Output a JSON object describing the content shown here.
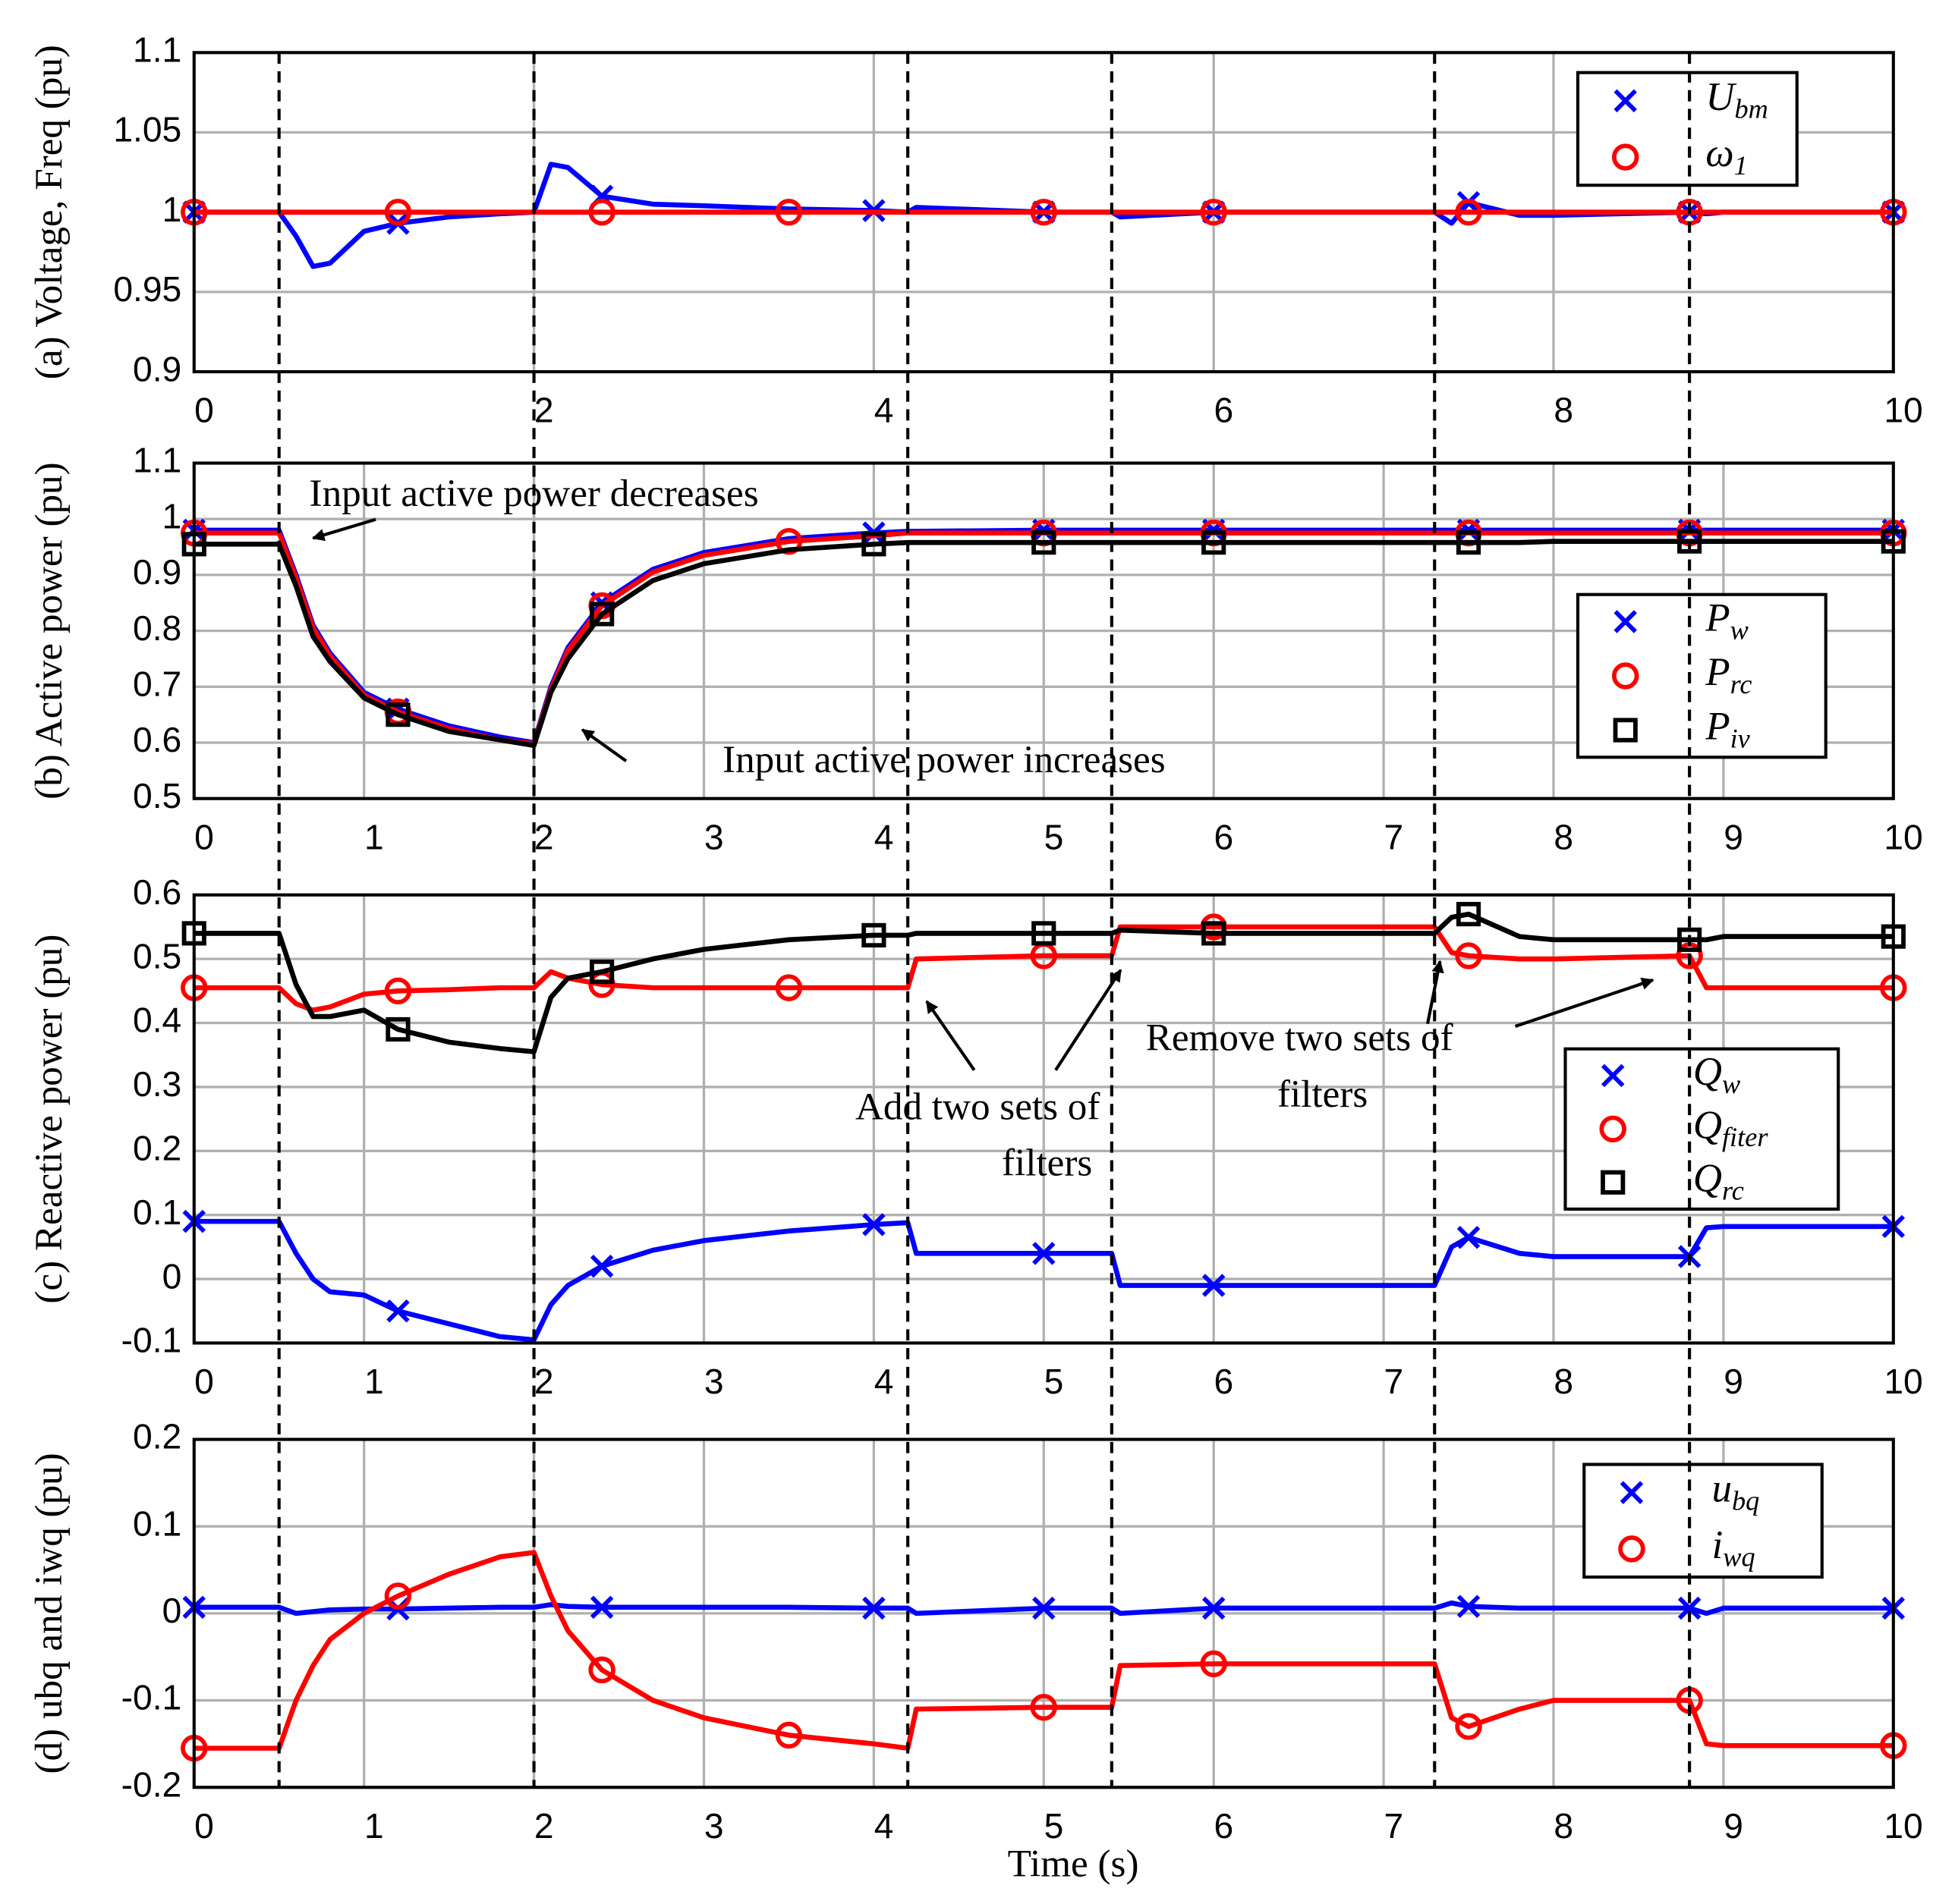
{
  "event_times": [
    0.5,
    2,
    4.2,
    5.4,
    7.3,
    8.8
  ],
  "xlabel": "Time (s)",
  "chart_data": [
    {
      "type": "line",
      "ylabel": "(a) Voltage, Freq (pu)",
      "x": [
        0,
        0.5,
        0.6,
        0.7,
        0.8,
        1.0,
        1.2,
        1.5,
        1.8,
        2.0,
        2.1,
        2.2,
        2.4,
        2.7,
        3.0,
        3.5,
        4.0,
        4.2,
        4.25,
        5.0,
        5.4,
        5.45,
        6,
        7,
        7.3,
        7.4,
        7.5,
        7.8,
        8,
        8.8,
        8.9,
        9,
        10
      ],
      "xlim": [
        0,
        10
      ],
      "xticks": [
        0,
        2,
        4,
        6,
        8,
        10
      ],
      "ylim": [
        0.9,
        1.1
      ],
      "yticks": [
        0.9,
        0.95,
        1,
        1.05,
        1.1
      ],
      "grid": true,
      "legend": "upper right",
      "series": [
        {
          "name": "Ubm",
          "color": "#0000ff",
          "marker": "x",
          "values": [
            1,
            1,
            0.985,
            0.966,
            0.968,
            0.988,
            0.993,
            0.997,
            0.999,
            1.0,
            1.03,
            1.028,
            1.01,
            1.005,
            1.004,
            1.002,
            1.001,
            1.0,
            1.003,
            1.0,
            1.0,
            0.997,
            1.0,
            1.0,
            1.0,
            0.993,
            1.006,
            0.998,
            0.998,
            1.0,
            0.999,
            1.0,
            1.0
          ]
        },
        {
          "name": "ω1",
          "color": "#ff0000",
          "marker": "o",
          "values": [
            1,
            1,
            1,
            1,
            1,
            1,
            1,
            1,
            1,
            1,
            1,
            1,
            1,
            1,
            1,
            1,
            1,
            1,
            1,
            1,
            1,
            1,
            1,
            1,
            1,
            1,
            1,
            1,
            1,
            1,
            1,
            1,
            1
          ]
        }
      ]
    },
    {
      "type": "line",
      "ylabel": "(b) Active power (pu)",
      "x": [
        0,
        0.5,
        0.6,
        0.7,
        0.8,
        1.0,
        1.2,
        1.5,
        1.8,
        2.0,
        2.1,
        2.2,
        2.4,
        2.7,
        3.0,
        3.5,
        4.0,
        4.2,
        4.25,
        5.0,
        5.4,
        5.45,
        6,
        7,
        7.3,
        7.4,
        7.5,
        7.8,
        8,
        8.8,
        8.9,
        9,
        10
      ],
      "xlim": [
        0,
        10
      ],
      "xticks": [
        0,
        1,
        2,
        3,
        4,
        5,
        6,
        7,
        8,
        9,
        10
      ],
      "ylim": [
        0.5,
        1.1
      ],
      "yticks": [
        0.5,
        0.6,
        0.7,
        0.8,
        0.9,
        1,
        1.1
      ],
      "grid": true,
      "legend": "right",
      "annotations": [
        "Input active power decreases",
        "Input active power increases"
      ],
      "series": [
        {
          "name": "Pw",
          "color": "#0000ff",
          "marker": "x",
          "values": [
            0.98,
            0.98,
            0.9,
            0.81,
            0.76,
            0.69,
            0.66,
            0.63,
            0.61,
            0.6,
            0.7,
            0.77,
            0.85,
            0.91,
            0.94,
            0.965,
            0.975,
            0.978,
            0.978,
            0.98,
            0.98,
            0.98,
            0.98,
            0.98,
            0.98,
            0.98,
            0.98,
            0.98,
            0.98,
            0.98,
            0.98,
            0.98,
            0.98
          ]
        },
        {
          "name": "Prc",
          "color": "#ff0000",
          "marker": "o",
          "values": [
            0.975,
            0.975,
            0.895,
            0.805,
            0.755,
            0.685,
            0.655,
            0.625,
            0.605,
            0.598,
            0.695,
            0.765,
            0.845,
            0.905,
            0.935,
            0.96,
            0.97,
            0.975,
            0.975,
            0.975,
            0.975,
            0.975,
            0.975,
            0.975,
            0.975,
            0.975,
            0.975,
            0.975,
            0.975,
            0.975,
            0.975,
            0.975,
            0.975
          ]
        },
        {
          "name": "Piv",
          "color": "#000000",
          "marker": "s",
          "values": [
            0.955,
            0.955,
            0.88,
            0.79,
            0.745,
            0.68,
            0.65,
            0.62,
            0.605,
            0.595,
            0.69,
            0.75,
            0.83,
            0.89,
            0.92,
            0.945,
            0.955,
            0.958,
            0.958,
            0.958,
            0.958,
            0.958,
            0.958,
            0.958,
            0.958,
            0.958,
            0.958,
            0.958,
            0.96,
            0.96,
            0.96,
            0.96,
            0.96
          ]
        }
      ]
    },
    {
      "type": "line",
      "ylabel": "(c) Reactive power (pu)",
      "x": [
        0,
        0.5,
        0.6,
        0.7,
        0.8,
        1.0,
        1.2,
        1.5,
        1.8,
        2.0,
        2.1,
        2.2,
        2.4,
        2.7,
        3.0,
        3.5,
        4.0,
        4.2,
        4.25,
        5.0,
        5.4,
        5.45,
        6,
        7,
        7.3,
        7.4,
        7.5,
        7.8,
        8,
        8.8,
        8.9,
        9,
        10
      ],
      "xlim": [
        0,
        10
      ],
      "xticks": [
        0,
        1,
        2,
        3,
        4,
        5,
        6,
        7,
        8,
        9,
        10
      ],
      "ylim": [
        -0.1,
        0.6
      ],
      "yticks": [
        -0.1,
        0,
        0.1,
        0.2,
        0.3,
        0.4,
        0.5,
        0.6
      ],
      "grid": true,
      "legend": "right",
      "annotations": [
        "Add two sets of",
        "filters",
        "Remove two sets of",
        "filters"
      ],
      "series": [
        {
          "name": "Qw",
          "color": "#0000ff",
          "marker": "x",
          "values": [
            0.09,
            0.09,
            0.04,
            0.0,
            -0.02,
            -0.025,
            -0.05,
            -0.07,
            -0.09,
            -0.095,
            -0.04,
            -0.01,
            0.02,
            0.045,
            0.06,
            0.075,
            0.085,
            0.088,
            0.04,
            0.04,
            0.04,
            -0.01,
            -0.01,
            -0.01,
            -0.01,
            0.05,
            0.065,
            0.04,
            0.035,
            0.035,
            0.08,
            0.082,
            0.082
          ]
        },
        {
          "name": "Qfiter",
          "color": "#ff0000",
          "marker": "o",
          "values": [
            0.455,
            0.455,
            0.43,
            0.42,
            0.425,
            0.445,
            0.45,
            0.452,
            0.455,
            0.455,
            0.48,
            0.47,
            0.46,
            0.455,
            0.455,
            0.455,
            0.455,
            0.455,
            0.5,
            0.505,
            0.505,
            0.55,
            0.55,
            0.55,
            0.55,
            0.51,
            0.505,
            0.5,
            0.5,
            0.505,
            0.455,
            0.455,
            0.455
          ]
        },
        {
          "name": "Qrc",
          "color": "#000000",
          "marker": "s",
          "values": [
            0.54,
            0.54,
            0.46,
            0.41,
            0.41,
            0.42,
            0.39,
            0.37,
            0.36,
            0.355,
            0.44,
            0.47,
            0.48,
            0.5,
            0.515,
            0.53,
            0.537,
            0.537,
            0.54,
            0.54,
            0.54,
            0.545,
            0.54,
            0.54,
            0.54,
            0.565,
            0.57,
            0.535,
            0.53,
            0.53,
            0.53,
            0.535,
            0.535
          ]
        }
      ]
    },
    {
      "type": "line",
      "ylabel": "(d) ubq and iwq (pu)",
      "x": [
        0,
        0.5,
        0.6,
        0.7,
        0.8,
        1.0,
        1.2,
        1.5,
        1.8,
        2.0,
        2.1,
        2.2,
        2.4,
        2.7,
        3.0,
        3.5,
        4.0,
        4.2,
        4.25,
        5.0,
        5.4,
        5.45,
        6,
        7,
        7.3,
        7.4,
        7.5,
        7.8,
        8,
        8.8,
        8.9,
        9,
        10
      ],
      "xlim": [
        0,
        10
      ],
      "xticks": [
        0,
        1,
        2,
        3,
        4,
        5,
        6,
        7,
        8,
        9,
        10
      ],
      "ylim": [
        -0.2,
        0.2
      ],
      "yticks": [
        -0.2,
        -0.1,
        0,
        0.1,
        0.2
      ],
      "grid": true,
      "legend": "upper right",
      "series": [
        {
          "name": "ubq",
          "color": "#0000ff",
          "marker": "x",
          "values": [
            0.007,
            0.007,
            0.0,
            0.002,
            0.004,
            0.005,
            0.005,
            0.006,
            0.007,
            0.007,
            0.01,
            0.008,
            0.007,
            0.007,
            0.007,
            0.007,
            0.006,
            0.006,
            0.0,
            0.006,
            0.006,
            0.0,
            0.006,
            0.006,
            0.006,
            0.012,
            0.008,
            0.006,
            0.006,
            0.006,
            0.0,
            0.006,
            0.006
          ]
        },
        {
          "name": "iwq",
          "color": "#ff0000",
          "marker": "o",
          "values": [
            -0.155,
            -0.155,
            -0.1,
            -0.06,
            -0.03,
            0.0,
            0.02,
            0.045,
            0.065,
            0.07,
            0.02,
            -0.02,
            -0.065,
            -0.1,
            -0.12,
            -0.14,
            -0.15,
            -0.155,
            -0.11,
            -0.108,
            -0.108,
            -0.06,
            -0.058,
            -0.058,
            -0.058,
            -0.12,
            -0.13,
            -0.11,
            -0.1,
            -0.1,
            -0.15,
            -0.152,
            -0.152
          ]
        }
      ]
    }
  ]
}
